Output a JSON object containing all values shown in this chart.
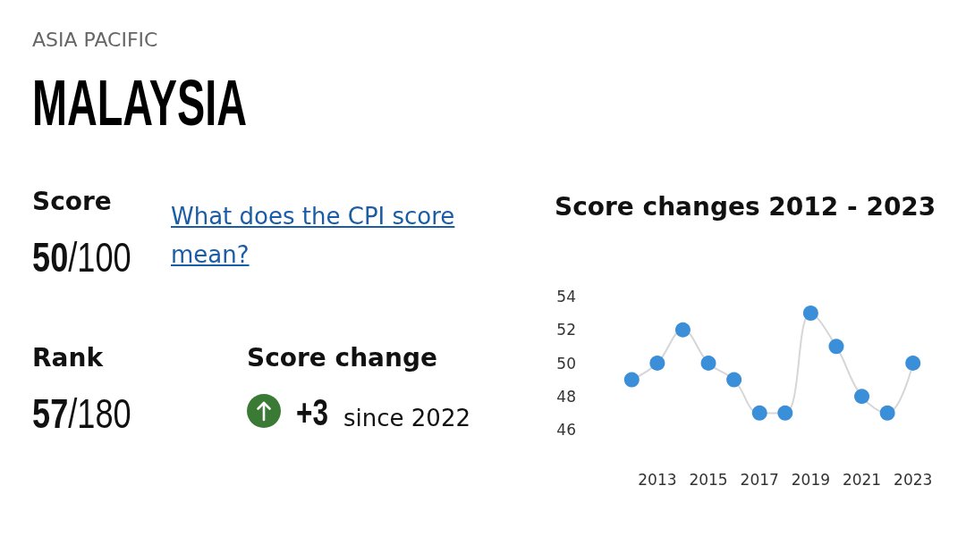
{
  "chart_data": [
    {
      "type": "other",
      "subtitle": "ASIA PACIFIC",
      "title": "MALAYSIA",
      "annotations": [
        "Score",
        "50/100",
        "What does the CPI score mean?",
        "Rank",
        "57/180",
        "Score change",
        "+3",
        "since 2022"
      ]
    },
    {
      "type": "line",
      "title": "Score changes 2012 - 2023",
      "categories": [
        null,
        "2013",
        null,
        "2015",
        null,
        "2017",
        null,
        "2019",
        null,
        "2021",
        null,
        "2023"
      ],
      "values": [
        49,
        50,
        52,
        50,
        49,
        47,
        47,
        53,
        51,
        48,
        47,
        50
      ],
      "color": "#d6d6d6",
      "colors": [
        "#3b8fd9",
        "#3b8fd9",
        "#3b8fd9",
        "#3b8fd9",
        "#3b8fd9",
        "#3b8fd9",
        "#3b8fd9",
        "#3b8fd9",
        "#3b8fd9",
        "#3b8fd9",
        "#3b8fd9",
        "#3b8fd9"
      ],
      "ylim": [
        46,
        54
      ],
      "yticks": [
        46,
        48,
        50,
        52,
        54
      ],
      "marker": "circle",
      "line_style": "solid"
    }
  ]
}
